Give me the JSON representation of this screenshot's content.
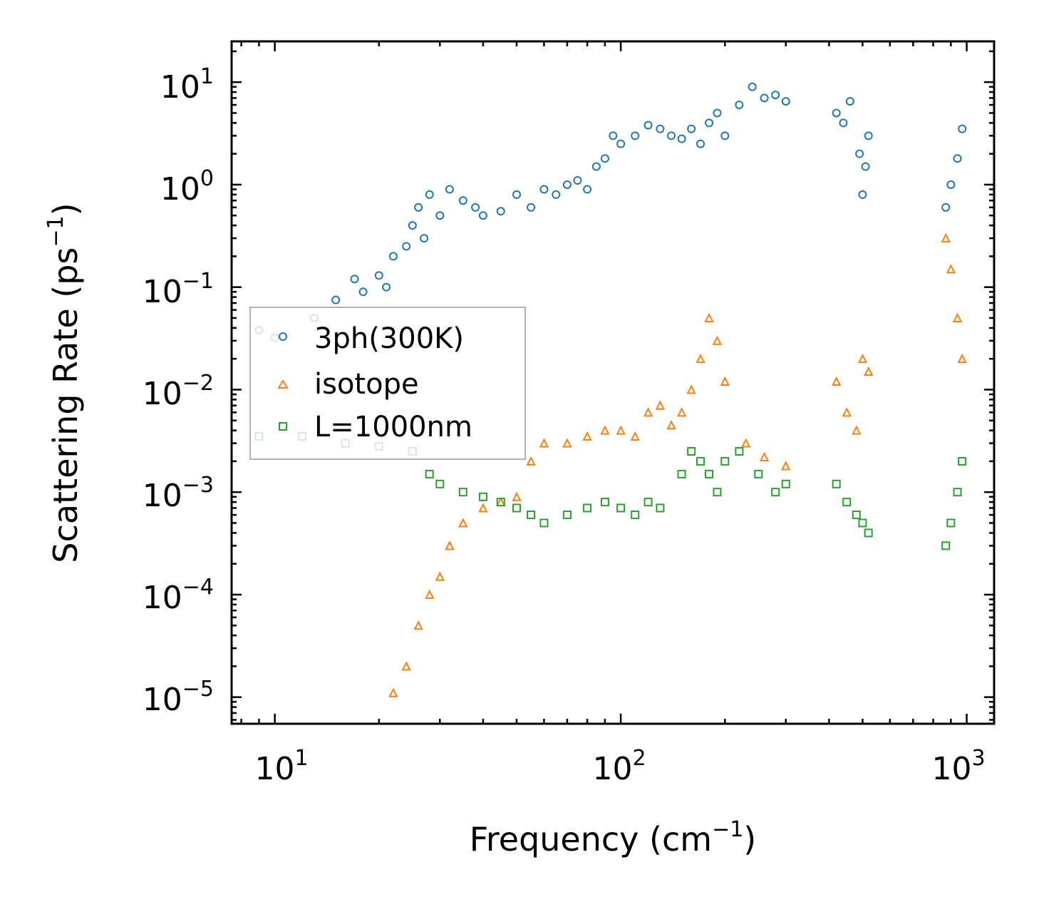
{
  "chart_data": {
    "type": "scatter",
    "title": "",
    "xlabel": "Frequency (cm",
    "xlabel_sup": "−1",
    "xlabel_end": ")",
    "ylabel": "Scattering Rate (ps",
    "ylabel_sup": "−1",
    "ylabel_end": ")",
    "xscale": "log",
    "yscale": "log",
    "xlim": [
      7.5,
      1200
    ],
    "ylim": [
      5.5e-06,
      25
    ],
    "xticks": [
      {
        "base": "10",
        "exp": "1",
        "value": 10
      },
      {
        "base": "10",
        "exp": "2",
        "value": 100
      },
      {
        "base": "10",
        "exp": "3",
        "value": 1000
      }
    ],
    "yticks": [
      {
        "base": "10",
        "exp": "1",
        "value": 10
      },
      {
        "base": "10",
        "exp": "0",
        "value": 1
      },
      {
        "base": "10",
        "exp": "−1",
        "value": 0.1
      },
      {
        "base": "10",
        "exp": "−2",
        "value": 0.01
      },
      {
        "base": "10",
        "exp": "−3",
        "value": 0.001
      },
      {
        "base": "10",
        "exp": "−4",
        "value": 0.0001
      },
      {
        "base": "10",
        "exp": "−5",
        "value": 1e-05
      }
    ],
    "legend_position": "center-left",
    "series": [
      {
        "name": "3ph(300K)",
        "marker": "circle",
        "color": "#1f77b4",
        "points": [
          [
            9,
            0.038
          ],
          [
            10,
            0.032
          ],
          [
            13,
            0.05
          ],
          [
            15,
            0.075
          ],
          [
            17,
            0.12
          ],
          [
            18,
            0.09
          ],
          [
            20,
            0.13
          ],
          [
            21,
            0.1
          ],
          [
            22,
            0.2
          ],
          [
            24,
            0.25
          ],
          [
            25,
            0.4
          ],
          [
            26,
            0.6
          ],
          [
            27,
            0.3
          ],
          [
            28,
            0.8
          ],
          [
            30,
            0.5
          ],
          [
            32,
            0.9
          ],
          [
            35,
            0.7
          ],
          [
            38,
            0.6
          ],
          [
            40,
            0.5
          ],
          [
            45,
            0.55
          ],
          [
            50,
            0.8
          ],
          [
            55,
            0.6
          ],
          [
            60,
            0.9
          ],
          [
            65,
            0.8
          ],
          [
            70,
            1.0
          ],
          [
            75,
            1.1
          ],
          [
            80,
            0.9
          ],
          [
            85,
            1.5
          ],
          [
            90,
            1.8
          ],
          [
            95,
            3.0
          ],
          [
            100,
            2.5
          ],
          [
            110,
            3.0
          ],
          [
            120,
            3.8
          ],
          [
            130,
            3.5
          ],
          [
            140,
            3.0
          ],
          [
            150,
            2.8
          ],
          [
            160,
            3.5
          ],
          [
            170,
            2.5
          ],
          [
            180,
            4.0
          ],
          [
            190,
            5.0
          ],
          [
            200,
            3.0
          ],
          [
            220,
            6.0
          ],
          [
            240,
            9.0
          ],
          [
            260,
            7.0
          ],
          [
            280,
            7.5
          ],
          [
            300,
            6.5
          ],
          [
            420,
            5.0
          ],
          [
            440,
            4.0
          ],
          [
            460,
            6.5
          ],
          [
            490,
            2.0
          ],
          [
            500,
            0.8
          ],
          [
            510,
            1.5
          ],
          [
            520,
            3.0
          ],
          [
            870,
            0.6
          ],
          [
            900,
            1.0
          ],
          [
            940,
            1.8
          ],
          [
            970,
            3.5
          ]
        ]
      },
      {
        "name": "isotope",
        "marker": "triangle",
        "color": "#ff7f0e",
        "points": [
          [
            22,
            1.1e-05
          ],
          [
            24,
            2e-05
          ],
          [
            26,
            5e-05
          ],
          [
            28,
            0.0001
          ],
          [
            30,
            0.00015
          ],
          [
            32,
            0.0003
          ],
          [
            35,
            0.0005
          ],
          [
            40,
            0.0007
          ],
          [
            45,
            0.0008
          ],
          [
            50,
            0.0009
          ],
          [
            55,
            0.002
          ],
          [
            60,
            0.003
          ],
          [
            70,
            0.003
          ],
          [
            80,
            0.0035
          ],
          [
            90,
            0.004
          ],
          [
            100,
            0.004
          ],
          [
            110,
            0.0035
          ],
          [
            120,
            0.006
          ],
          [
            130,
            0.007
          ],
          [
            140,
            0.0045
          ],
          [
            150,
            0.006
          ],
          [
            160,
            0.01
          ],
          [
            170,
            0.02
          ],
          [
            180,
            0.05
          ],
          [
            190,
            0.03
          ],
          [
            200,
            0.012
          ],
          [
            230,
            0.003
          ],
          [
            260,
            0.0022
          ],
          [
            300,
            0.0018
          ],
          [
            420,
            0.012
          ],
          [
            450,
            0.006
          ],
          [
            480,
            0.004
          ],
          [
            500,
            0.02
          ],
          [
            520,
            0.015
          ],
          [
            870,
            0.3
          ],
          [
            900,
            0.15
          ],
          [
            940,
            0.05
          ],
          [
            970,
            0.02
          ]
        ]
      },
      {
        "name": "L=1000nm",
        "marker": "square",
        "color": "#2ca02c",
        "points": [
          [
            9,
            0.0035
          ],
          [
            12,
            0.0035
          ],
          [
            16,
            0.003
          ],
          [
            20,
            0.0028
          ],
          [
            25,
            0.0025
          ],
          [
            28,
            0.0015
          ],
          [
            30,
            0.0012
          ],
          [
            35,
            0.001
          ],
          [
            40,
            0.0009
          ],
          [
            45,
            0.0008
          ],
          [
            50,
            0.0007
          ],
          [
            55,
            0.0006
          ],
          [
            60,
            0.0005
          ],
          [
            70,
            0.0006
          ],
          [
            80,
            0.0007
          ],
          [
            90,
            0.0008
          ],
          [
            100,
            0.0007
          ],
          [
            110,
            0.0006
          ],
          [
            120,
            0.0008
          ],
          [
            130,
            0.0007
          ],
          [
            150,
            0.0015
          ],
          [
            160,
            0.0025
          ],
          [
            170,
            0.002
          ],
          [
            180,
            0.0015
          ],
          [
            190,
            0.001
          ],
          [
            200,
            0.002
          ],
          [
            220,
            0.0025
          ],
          [
            250,
            0.0015
          ],
          [
            280,
            0.001
          ],
          [
            300,
            0.0012
          ],
          [
            420,
            0.0012
          ],
          [
            450,
            0.0008
          ],
          [
            480,
            0.0006
          ],
          [
            500,
            0.0005
          ],
          [
            520,
            0.0004
          ],
          [
            870,
            0.0003
          ],
          [
            900,
            0.0005
          ],
          [
            940,
            0.001
          ],
          [
            970,
            0.002
          ]
        ]
      }
    ]
  }
}
